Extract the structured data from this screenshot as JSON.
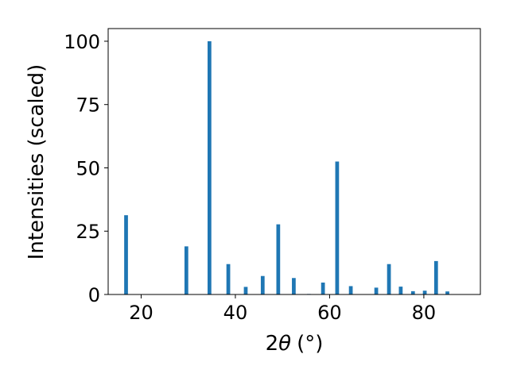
{
  "chart_data": {
    "type": "bar",
    "xlabel_prefix": "2",
    "xlabel_symbol": "θ",
    "xlabel_unit": "(°)",
    "ylabel": "Intensities (scaled)",
    "xlim": [
      13,
      92
    ],
    "ylim": [
      0,
      105
    ],
    "xticks": [
      20,
      40,
      60,
      80
    ],
    "yticks": [
      0,
      25,
      50,
      75,
      100
    ],
    "grid": false,
    "bar_color": "#1f77b4",
    "bar_width": 0.8,
    "x": [
      16.8,
      29.6,
      34.5,
      38.5,
      42.2,
      45.8,
      49.1,
      52.4,
      55.6,
      58.6,
      61.6,
      64.5,
      69.9,
      72.6,
      75.1,
      77.7,
      80.2,
      82.6,
      85.0
    ],
    "values": [
      31.3,
      19.0,
      100.0,
      12.0,
      3.0,
      7.3,
      27.7,
      6.5,
      0.2,
      4.7,
      52.5,
      3.3,
      2.7,
      12.0,
      3.1,
      1.3,
      1.5,
      13.2,
      1.2
    ]
  }
}
